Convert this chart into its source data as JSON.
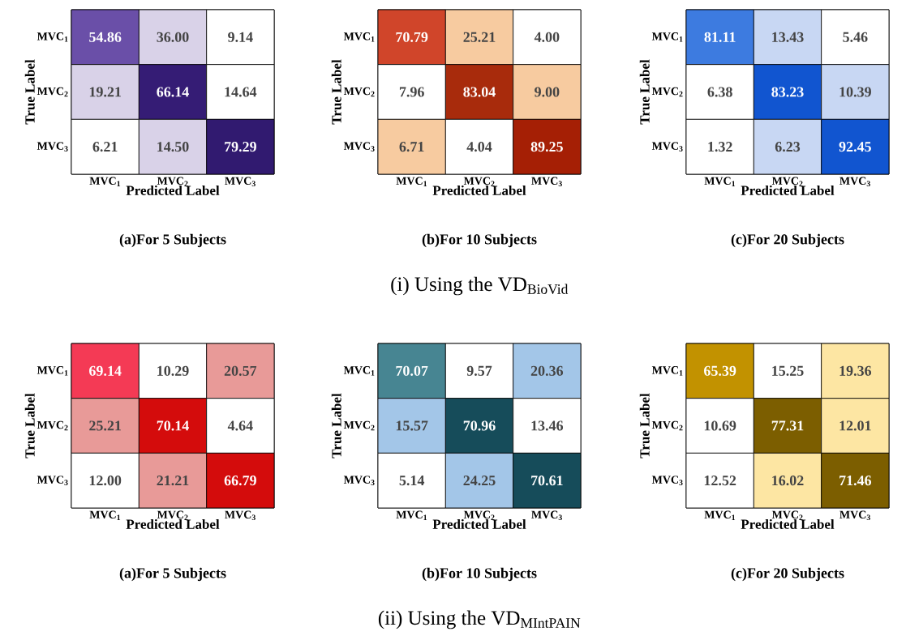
{
  "chart_data": [
    {
      "type": "heatmap",
      "title": "(a)For 5 Subjects",
      "xlabel": "Predicted Label",
      "ylabel": "True Label",
      "categories": [
        "MVC$_{1}$",
        "MVC$_{2}$",
        "MVC$_{3}$"
      ],
      "y_categories": [
        "MVC$_{1}$",
        "MVC$_{2}$",
        "MVC$_{3}$"
      ],
      "cell_labels": [
        [
          "54.86",
          "36.00",
          "9.14"
        ],
        [
          "19.21",
          "66.14",
          "14.64"
        ],
        [
          "6.21",
          "14.50",
          "79.29"
        ]
      ],
      "data_labels": true,
      "cells": [
        [
          54.86,
          36.0,
          9.14
        ],
        [
          19.21,
          66.14,
          14.64
        ],
        [
          6.21,
          14.5,
          79.29
        ]
      ],
      "colors": [
        [
          "#6a4fa8",
          "#d9d2e8",
          "#ffffff"
        ],
        [
          "#d9d2e8",
          "#351c75",
          "#ffffff"
        ],
        [
          "#ffffff",
          "#d9d2e8",
          "#311a70"
        ]
      ]
    },
    {
      "type": "heatmap",
      "title": "(b)For 10 Subjects",
      "xlabel": "Predicted Label",
      "ylabel": "True Label",
      "categories": [
        "MVC$_{1}$",
        "MVC$_{2}$",
        "MVC$_{3}$"
      ],
      "y_categories": [
        "MVC$_{1}$",
        "MVC$_{2}$",
        "MVC$_{3}$"
      ],
      "cell_labels": [
        [
          "70.79",
          "25.21",
          "4.00"
        ],
        [
          "7.96",
          "83.04",
          "9.00"
        ],
        [
          "6.71",
          "4.04",
          "89.25"
        ]
      ],
      "data_labels": true,
      "cells": [
        [
          70.79,
          25.21,
          4.0
        ],
        [
          7.96,
          83.04,
          9.0
        ],
        [
          6.71,
          4.04,
          89.25
        ]
      ],
      "colors": [
        [
          "#d0452a",
          "#f7cba0",
          "#ffffff"
        ],
        [
          "#ffffff",
          "#a82b0c",
          "#f7cba0"
        ],
        [
          "#f7cba0",
          "#ffffff",
          "#a51f05"
        ]
      ],
      "annotations": [
        "(i) Using the VD$_{BioVid}$"
      ]
    },
    {
      "type": "heatmap",
      "title": "(c)For 20 Subjects",
      "xlabel": "Predicted Label",
      "ylabel": "True Label",
      "categories": [
        "MVC$_{1}$",
        "MVC$_{2}$",
        "MVC$_{3}$"
      ],
      "y_categories": [
        "MVC$_{1}$",
        "MVC$_{2}$",
        "MVC$_{3}$"
      ],
      "data_labels": true,
      "cells": [
        [
          81.11,
          13.43,
          5.46
        ],
        [
          6.38,
          83.23,
          10.39
        ],
        [
          1.32,
          6.23,
          92.45
        ]
      ],
      "colors": [
        [
          "#3d7be0",
          "#c8d7f3",
          "#ffffff"
        ],
        [
          "#ffffff",
          "#1155d0",
          "#c8d7f3"
        ],
        [
          "#ffffff",
          "#c8d7f3",
          "#1155d0"
        ]
      ]
    },
    {
      "type": "heatmap",
      "title": "(a)For 5 Subjects",
      "xlabel": "Predicted Label",
      "ylabel": "True Label",
      "categories": [
        "MVC$_{1}$",
        "MVC$_{2}$",
        "MVC$_{3}$"
      ],
      "y_categories": [
        "MVC$_{1}$",
        "MVC$_{2}$",
        "MVC$_{3}$"
      ],
      "cell_labels": [
        [
          "69.14",
          "10.29",
          "20.57"
        ],
        [
          "25.21",
          "70.14",
          "4.64"
        ],
        [
          "12.00",
          "21.21",
          "66.79"
        ]
      ],
      "data_labels": true,
      "cells": [
        [
          69.14,
          10.29,
          20.57
        ],
        [
          25.21,
          70.14,
          4.64
        ],
        [
          12.0,
          21.21,
          66.79
        ]
      ],
      "colors": [
        [
          "#f43a55",
          "#ffffff",
          "#e89a98"
        ],
        [
          "#e89a98",
          "#d40c0c",
          "#ffffff"
        ],
        [
          "#ffffff",
          "#e89a98",
          "#d40c0c"
        ]
      ]
    },
    {
      "type": "heatmap",
      "title": "(b)For 10 Subjects",
      "xlabel": "Predicted Label",
      "ylabel": "True Label",
      "categories": [
        "MVC$_{1}$",
        "MVC$_{2}$",
        "MVC$_{3}$"
      ],
      "y_categories": [
        "MVC$_{1}$",
        "MVC$_{2}$",
        "MVC$_{3}$"
      ],
      "data_labels": true,
      "cells": [
        [
          70.07,
          9.57,
          20.36
        ],
        [
          15.57,
          70.96,
          13.46
        ],
        [
          5.14,
          24.25,
          70.61
        ]
      ],
      "colors": [
        [
          "#478592",
          "#ffffff",
          "#a3c6e8"
        ],
        [
          "#a3c6e8",
          "#164c5a",
          "#ffffff"
        ],
        [
          "#ffffff",
          "#a3c6e8",
          "#164c5a"
        ]
      ],
      "annotations": [
        "(ii) Using the VD$_{MIntPAIN}$"
      ]
    },
    {
      "type": "heatmap",
      "title": "(c)For 20 Subjects",
      "xlabel": "Predicted Label",
      "ylabel": "True Label",
      "categories": [
        "MVC$_{1}$",
        "MVC$_{2}$",
        "MVC$_{3}$"
      ],
      "y_categories": [
        "MVC$_{1}$",
        "MVC$_{2}$",
        "MVC$_{3}$"
      ],
      "data_labels": true,
      "cells": [
        [
          65.39,
          15.25,
          19.36
        ],
        [
          10.69,
          77.31,
          12.01
        ],
        [
          12.52,
          16.02,
          71.46
        ]
      ],
      "colors": [
        [
          "#c29200",
          "#ffffff",
          "#fde6a3"
        ],
        [
          "#ffffff",
          "#7c5e00",
          "#fde6a3"
        ],
        [
          "#ffffff",
          "#fde6a3",
          "#7c5e00"
        ]
      ]
    }
  ]
}
